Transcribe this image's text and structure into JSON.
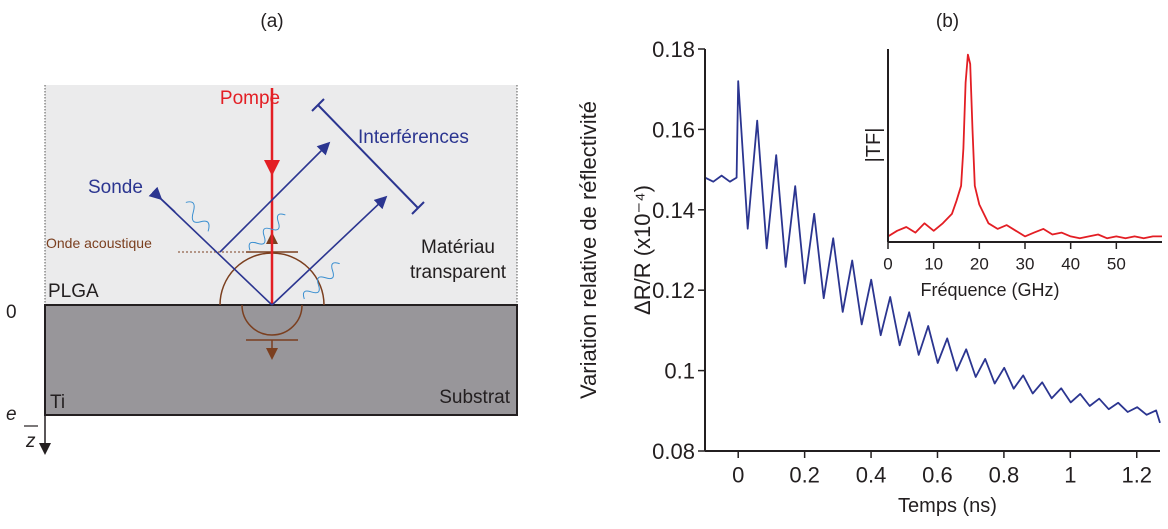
{
  "diagram": {
    "panel_label": "(a)",
    "pump": "Pompe",
    "interference": "Interférences",
    "probe": "Sonde",
    "acoustic_wave": "Onde acoustique",
    "layer": "PLGA",
    "material": [
      "Matériau",
      "transparent"
    ],
    "origin": "0",
    "ti": "Ti",
    "substrate": "Substrat",
    "thickness": "e",
    "axis": "z"
  },
  "chart_data": [
    {
      "type": "line",
      "title": "(b)",
      "ylabel": [
        "Variation relative de réflectivité",
        "ΔR/R (x10⁻⁴)"
      ],
      "xlabel": "Temps (ns)",
      "x": [
        -0.1,
        -0.075,
        -0.05,
        -0.025,
        -0.005,
        0,
        0.0286,
        0.0572,
        0.0858,
        0.1144,
        0.143,
        0.1716,
        0.2002,
        0.2288,
        0.2574,
        0.286,
        0.3146,
        0.3432,
        0.3718,
        0.4004,
        0.429,
        0.4576,
        0.4862,
        0.5148,
        0.5434,
        0.572,
        0.6006,
        0.6292,
        0.6578,
        0.6864,
        0.715,
        0.7436,
        0.7722,
        0.8008,
        0.8294,
        0.858,
        0.8866,
        0.9152,
        0.9438,
        0.9724,
        1.001,
        1.0296,
        1.0582,
        1.0868,
        1.1154,
        1.144,
        1.1726,
        1.2012,
        1.2298,
        1.2584,
        1.27
      ],
      "series": [
        {
          "color": "#2b3590",
          "values": [
            0.148,
            0.147,
            0.1485,
            0.147,
            0.148,
            0.172,
            0.1353,
            0.1622,
            0.1304,
            0.1536,
            0.1258,
            0.1459,
            0.1217,
            0.139,
            0.118,
            0.1329,
            0.1146,
            0.1274,
            0.1115,
            0.1226,
            0.1088,
            0.1183,
            0.1063,
            0.1145,
            0.1039,
            0.1111,
            0.1019,
            0.108,
            0.1,
            0.1053,
            0.0984,
            0.1029,
            0.0968,
            0.1007,
            0.0955,
            0.0988,
            0.0943,
            0.0971,
            0.0931,
            0.0956,
            0.0921,
            0.0942,
            0.0912,
            0.093,
            0.0904,
            0.092,
            0.0897,
            0.0909,
            0.089,
            0.0901,
            0.087
          ]
        }
      ],
      "xlim": [
        -0.1,
        1.27
      ],
      "ylim": [
        0.08,
        0.18
      ],
      "xticks": [
        0,
        0.2,
        0.4,
        0.6,
        0.8,
        1,
        1.2
      ],
      "yticks": [
        0.08,
        0.1,
        0.12,
        0.14,
        0.16,
        0.18
      ]
    },
    {
      "type": "line",
      "xlabel": "Fréquence (GHz)",
      "ylabel": [
        "|TF|"
      ],
      "x": [
        0,
        2,
        4,
        6,
        8,
        10,
        12,
        14,
        15,
        16,
        16.5,
        17,
        17.5,
        18,
        18.5,
        19,
        20,
        22,
        24,
        26,
        28,
        30,
        32,
        34,
        36,
        38,
        40,
        42,
        44,
        46,
        48,
        50,
        52,
        54,
        56,
        58,
        60
      ],
      "series": [
        {
          "color": "#e31e24",
          "values": [
            0.03,
            0.06,
            0.08,
            0.05,
            0.1,
            0.06,
            0.1,
            0.15,
            0.22,
            0.3,
            0.5,
            0.85,
            1.0,
            0.95,
            0.6,
            0.3,
            0.2,
            0.1,
            0.07,
            0.09,
            0.06,
            0.03,
            0.05,
            0.07,
            0.04,
            0.05,
            0.03,
            0.02,
            0.03,
            0.04,
            0.02,
            0.03,
            0.02,
            0.03,
            0.02,
            0.03,
            0.03
          ]
        }
      ],
      "xlim": [
        0,
        60
      ],
      "ylim": [
        0,
        1.03
      ],
      "xticks": [
        0,
        10,
        20,
        30,
        40,
        50
      ]
    }
  ]
}
